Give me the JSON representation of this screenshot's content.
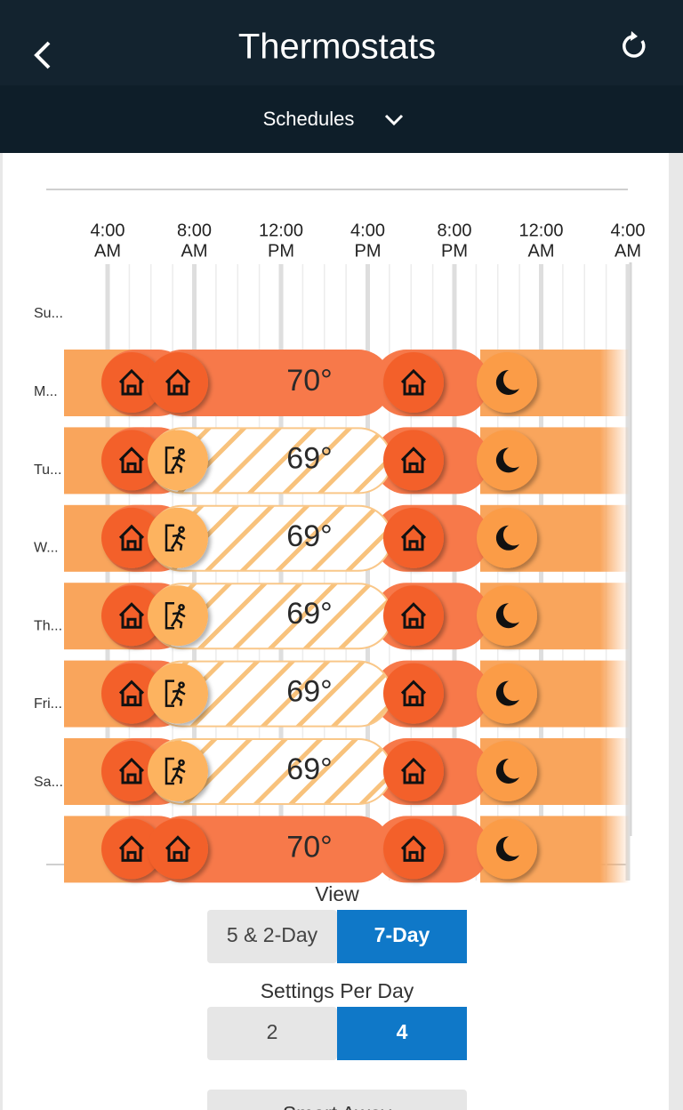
{
  "header": {
    "title": "Thermostats",
    "subtitle": "Schedules"
  },
  "timeline": {
    "times": [
      {
        "time": "4:00",
        "period": "AM"
      },
      {
        "time": "8:00",
        "period": "AM"
      },
      {
        "time": "12:00",
        "period": "PM"
      },
      {
        "time": "4:00",
        "period": "PM"
      },
      {
        "time": "8:00",
        "period": "PM"
      },
      {
        "time": "12:00",
        "period": "AM"
      },
      {
        "time": "4:00",
        "period": "AM"
      }
    ]
  },
  "day_labels": [
    "Su...",
    "M...",
    "Tu...",
    "W...",
    "Th...",
    "Fri...",
    "Sa..."
  ],
  "schedule_rows": [
    {
      "temperature": "70°",
      "second_setting": "home"
    },
    {
      "temperature": "69°",
      "second_setting": "away"
    },
    {
      "temperature": "69°",
      "second_setting": "away"
    },
    {
      "temperature": "69°",
      "second_setting": "away"
    },
    {
      "temperature": "69°",
      "second_setting": "away"
    },
    {
      "temperature": "69°",
      "second_setting": "away"
    },
    {
      "temperature": "70°",
      "second_setting": "home"
    }
  ],
  "view": {
    "label": "View",
    "options": [
      "5 & 2-Day",
      "7-Day"
    ],
    "selected": 1
  },
  "settings_per_day": {
    "label": "Settings Per Day",
    "options": [
      "2",
      "4"
    ],
    "selected": 1
  },
  "smart_away": "Smart Away"
}
